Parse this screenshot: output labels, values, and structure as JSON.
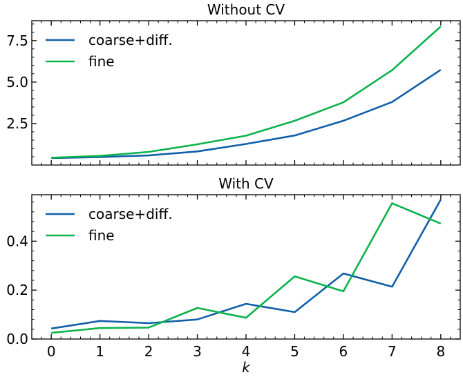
{
  "chart_data": [
    {
      "type": "line",
      "title": "Without CV",
      "x": [
        0,
        1,
        2,
        3,
        4,
        5,
        6,
        7,
        8
      ],
      "xlabel": "",
      "ylabel": "",
      "xlim": [
        -0.4,
        8.4
      ],
      "ylim": [
        0.0,
        8.7
      ],
      "yticks": [
        2.5,
        5.0,
        7.5
      ],
      "ytick_labels": [
        "2.5",
        "5.0",
        "7.5"
      ],
      "xtick_labels": [],
      "legend": "top-left",
      "series": [
        {
          "name": "coarse+diff.",
          "color": "#0f5ea8",
          "values": [
            0.42,
            0.48,
            0.58,
            0.82,
            1.27,
            1.78,
            2.67,
            3.8,
            5.74
          ]
        },
        {
          "name": "fine",
          "color": "#0bb24b",
          "values": [
            0.44,
            0.55,
            0.79,
            1.25,
            1.77,
            2.67,
            3.78,
            5.72,
            8.35
          ]
        }
      ]
    },
    {
      "type": "line",
      "title": "With CV",
      "x": [
        0,
        1,
        2,
        3,
        4,
        5,
        6,
        7,
        8
      ],
      "xlabel": "k",
      "ylabel": "",
      "xlim": [
        -0.4,
        8.4
      ],
      "ylim": [
        0.0,
        0.59
      ],
      "yticks": [
        0.0,
        0.2,
        0.4
      ],
      "ytick_labels": [
        "0.0",
        "0.2",
        "0.4"
      ],
      "xtick_labels": [
        "0",
        "1",
        "2",
        "3",
        "4",
        "5",
        "6",
        "7",
        "8"
      ],
      "legend": "top-left",
      "series": [
        {
          "name": "coarse+diff.",
          "color": "#0f5ea8",
          "values": [
            0.043,
            0.074,
            0.065,
            0.08,
            0.144,
            0.11,
            0.268,
            0.214,
            0.57
          ]
        },
        {
          "name": "fine",
          "color": "#0bb24b",
          "values": [
            0.025,
            0.045,
            0.047,
            0.127,
            0.087,
            0.256,
            0.195,
            0.555,
            0.472
          ]
        }
      ]
    }
  ]
}
